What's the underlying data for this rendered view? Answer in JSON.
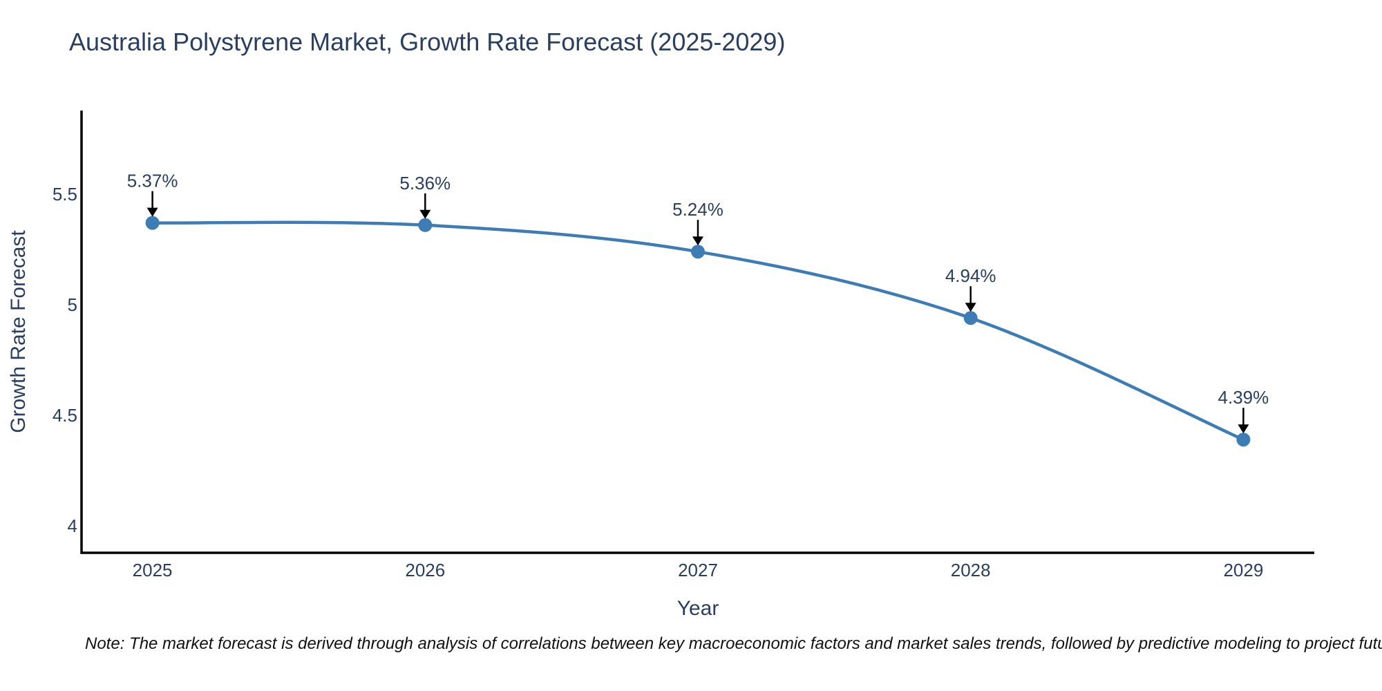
{
  "title": "Australia Polystyrene Market, Growth Rate Forecast (2025-2029)",
  "note": "Note: The market forecast is derived through analysis of correlations between key macroeconomic factors and market sales trends, followed by predictive modeling to project future sales",
  "chart_data": {
    "type": "line",
    "title": "Australia Polystyrene Market, Growth Rate Forecast (2025-2029)",
    "xlabel": "Year",
    "ylabel": "Growth Rate Forecast",
    "x": [
      2025,
      2026,
      2027,
      2028,
      2029
    ],
    "series": [
      {
        "name": "Growth Rate Forecast",
        "values": [
          5.37,
          5.36,
          5.24,
          4.94,
          4.39
        ],
        "labels": [
          "5.37%",
          "5.36%",
          "5.24%",
          "4.94%",
          "4.39%"
        ]
      }
    ],
    "x_tick_labels": [
      "2025",
      "2026",
      "2027",
      "2028",
      "2029"
    ],
    "y_tick_labels": [
      "4",
      "4.5",
      "5",
      "5.5"
    ],
    "yticks": [
      4,
      4.5,
      5,
      5.5
    ],
    "ylim": [
      3.878,
      5.878
    ],
    "xlim": [
      2024.74,
      2029.26
    ],
    "grid": false,
    "legend": "none",
    "line_color": "#3E7CB6",
    "marker_color": "#3E7CB6",
    "axis_color": "#000000",
    "tick_color": "#2a3f5f",
    "annotation_text_color": "#2a3f5f",
    "arrow_color": "#000000",
    "background": "#ffffff"
  }
}
